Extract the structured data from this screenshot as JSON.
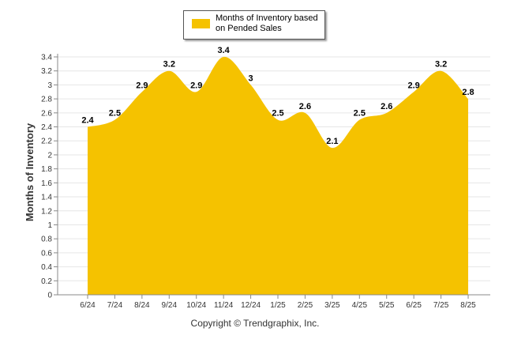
{
  "legend": {
    "label": "Months of Inventory based on Pended Sales"
  },
  "footer": {
    "copyright": "Copyright © Trendgraphix, Inc."
  },
  "chart_data": {
    "type": "area",
    "title": "",
    "xlabel": "",
    "ylabel": "Months of Inventory",
    "categories": [
      "6/24",
      "7/24",
      "8/24",
      "9/24",
      "10/24",
      "11/24",
      "12/24",
      "1/25",
      "2/25",
      "3/25",
      "4/25",
      "5/25",
      "6/25",
      "7/25",
      "8/25"
    ],
    "series": [
      {
        "name": "Months of Inventory based on Pended Sales",
        "values": [
          2.4,
          2.5,
          2.9,
          3.2,
          2.9,
          3.4,
          3.0,
          2.5,
          2.6,
          2.1,
          2.5,
          2.6,
          2.9,
          3.2,
          2.8
        ],
        "value_labels": [
          "2.4",
          "2.5",
          "2.9",
          "3.2",
          "2.9",
          "3.4",
          "3",
          "2.5",
          "2.6",
          "2.1",
          "2.5",
          "2.6",
          "2.9",
          "3.2",
          "2.8"
        ]
      }
    ],
    "ylim": [
      0,
      3.4
    ],
    "yticks": [
      "0",
      "0.2",
      "0.4",
      "0.6",
      "0.8",
      "1",
      "1.2",
      "1.4",
      "1.6",
      "1.8",
      "2",
      "2.2",
      "2.4",
      "2.6",
      "2.8",
      "3",
      "3.2",
      "3.4"
    ],
    "grid": true,
    "legend_position": "top-center",
    "colors": {
      "fill": "#F5C200",
      "grid": "#e6e6e6",
      "axis": "#888888"
    }
  }
}
